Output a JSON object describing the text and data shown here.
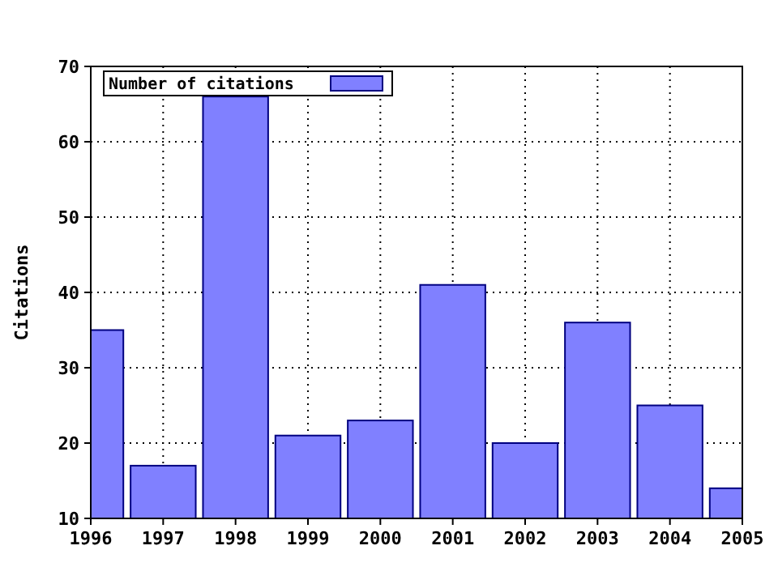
{
  "chart_data": {
    "type": "bar",
    "ylabel": "Citations",
    "x": [
      1996,
      1997,
      1998,
      1999,
      2000,
      2001,
      2002,
      2003,
      2004,
      2005
    ],
    "series": [
      {
        "name": "Number of citations",
        "color": "#8080ff",
        "values": [
          35,
          17,
          66,
          21,
          23,
          41,
          20,
          36,
          25,
          14
        ]
      }
    ],
    "xlim": [
      1996,
      2005
    ],
    "xticks": [
      1996,
      1997,
      1998,
      1999,
      2000,
      2001,
      2002,
      2003,
      2004,
      2005
    ],
    "ylim": [
      10,
      70
    ],
    "yticks": [
      10,
      20,
      30,
      40,
      50,
      60,
      70
    ],
    "grid": true,
    "legend": "top left"
  }
}
